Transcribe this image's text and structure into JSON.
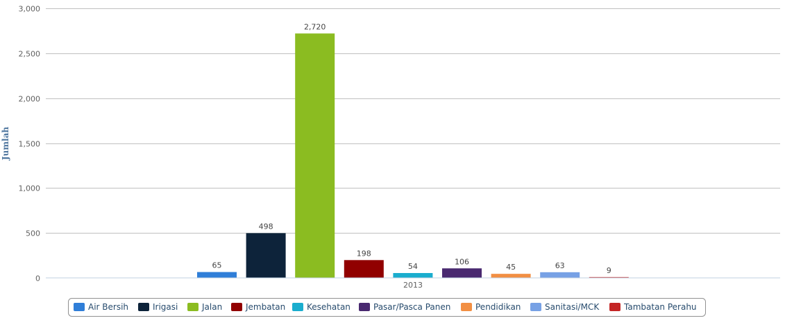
{
  "chart_data": {
    "type": "bar",
    "categories": [
      "2013"
    ],
    "ylabel": "Jumlah",
    "xlabel": "",
    "ylim": [
      0,
      3000
    ],
    "y_ticks": [
      0,
      500,
      1000,
      1500,
      2000,
      2500,
      3000
    ],
    "y_tick_labels": [
      "0",
      "500",
      "1,000",
      "1,500",
      "2,000",
      "2,500",
      "3,000"
    ],
    "grid": true,
    "legend_position": "bottom",
    "series": [
      {
        "name": "Air Bersih",
        "values": [
          65
        ],
        "label": "65",
        "color": "#2f7ed8"
      },
      {
        "name": "Irigasi",
        "values": [
          498
        ],
        "label": "498",
        "color": "#0d233a"
      },
      {
        "name": "Jalan",
        "values": [
          2720
        ],
        "label": "2,720",
        "color": "#8bbc21"
      },
      {
        "name": "Jembatan",
        "values": [
          198
        ],
        "label": "198",
        "color": "#910000"
      },
      {
        "name": "Kesehatan",
        "values": [
          54
        ],
        "label": "54",
        "color": "#1aadce"
      },
      {
        "name": "Pasar/Pasca Panen",
        "values": [
          106
        ],
        "label": "106",
        "color": "#492970"
      },
      {
        "name": "Pendidikan",
        "values": [
          45
        ],
        "label": "45",
        "color": "#f28f43"
      },
      {
        "name": "Sanitasi/MCK",
        "values": [
          63
        ],
        "label": "63",
        "color": "#77a1e5"
      },
      {
        "name": "Tambatan Perahu",
        "values": [
          9
        ],
        "label": "9",
        "color": "#c42525"
      }
    ]
  }
}
